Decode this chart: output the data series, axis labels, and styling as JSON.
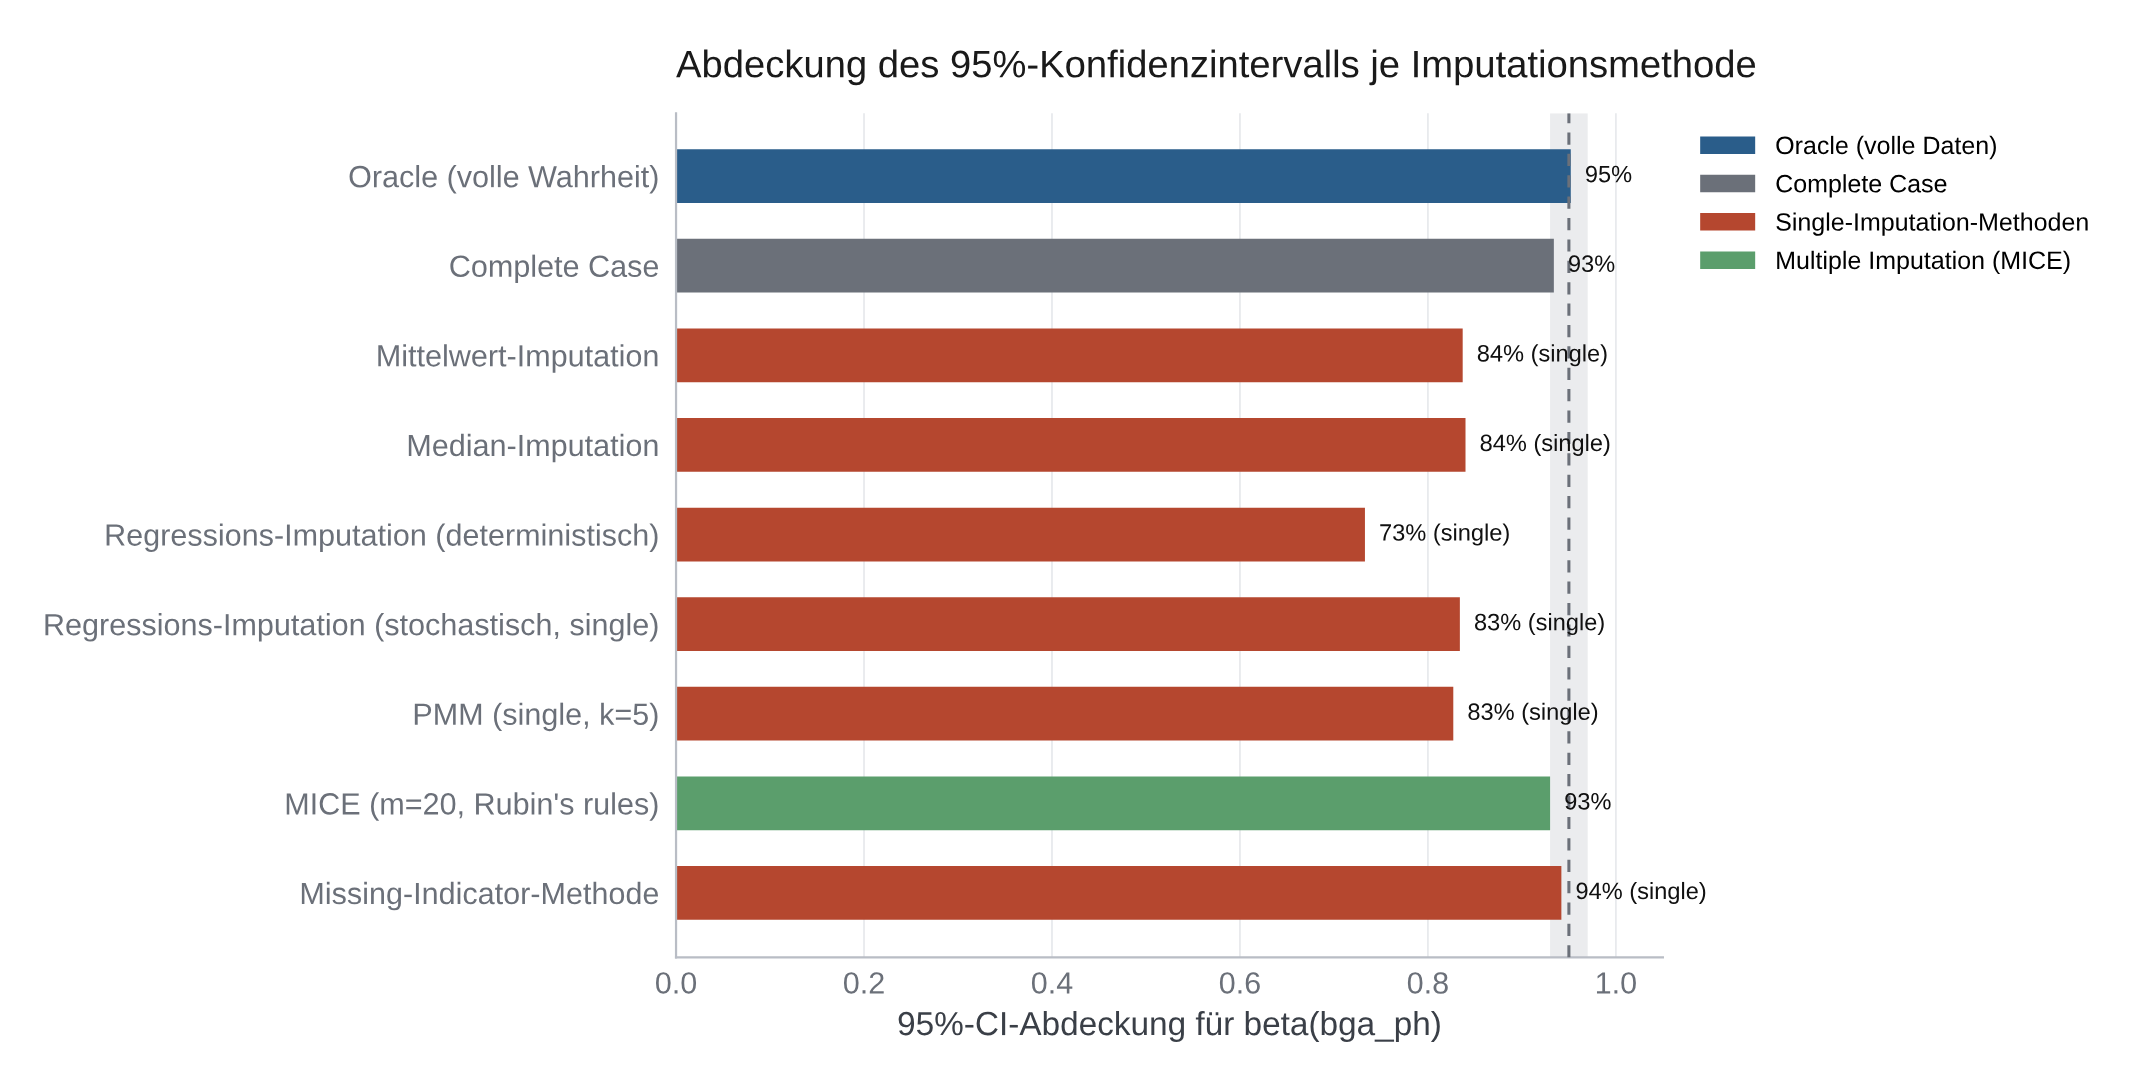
{
  "chart_data": {
    "type": "bar",
    "orientation": "horizontal",
    "title": "Abdeckung des 95%-Konfidenzintervalls je Imputationsmethode",
    "xlabel": "95%-CI-Abdeckung für beta(bga_ph)",
    "categories": [
      "Oracle (volle Wahrheit)",
      "Complete Case",
      "Mittelwert-Imputation",
      "Median-Imputation",
      "Regressions-Imputation (deterministisch)",
      "Regressions-Imputation (stochastisch, single)",
      "PMM (single, k=5)",
      "MICE (m=20, Rubin's rules)",
      "Missing-Indicator-Methode"
    ],
    "series": [
      {
        "name": "Oracle (volle Daten)",
        "color": "#2a5d8a",
        "values": [
          0.952,
          null,
          null,
          null,
          null,
          null,
          null,
          null,
          null
        ],
        "value_labels": [
          "95%",
          null,
          null,
          null,
          null,
          null,
          null,
          null,
          null
        ]
      },
      {
        "name": "Complete Case",
        "color": "#6b7079",
        "values": [
          null,
          0.934,
          null,
          null,
          null,
          null,
          null,
          null,
          null
        ],
        "value_labels": [
          null,
          "93%",
          null,
          null,
          null,
          null,
          null,
          null,
          null
        ]
      },
      {
        "name": "Single-Imputation-Methoden",
        "color": "#b5472f",
        "values": [
          null,
          null,
          0.837,
          0.84,
          0.733,
          0.834,
          0.827,
          null,
          0.942
        ],
        "value_labels": [
          null,
          null,
          "84% (single)",
          "84% (single)",
          "73% (single)",
          "83% (single)",
          "83% (single)",
          null,
          "94% (single)"
        ]
      },
      {
        "name": "Multiple Imputation (MICE)",
        "color": "#5b9e6c",
        "values": [
          null,
          null,
          null,
          null,
          null,
          null,
          null,
          0.93,
          null
        ],
        "value_labels": [
          null,
          null,
          null,
          null,
          null,
          null,
          null,
          "93%",
          null
        ]
      }
    ],
    "xlim": [
      0,
      1.05
    ],
    "xticks": [
      {
        "value": 0,
        "label": "0.0"
      },
      0.2,
      0.4,
      0.6,
      0.8,
      {
        "value": 1,
        "label": "1.0"
      }
    ],
    "grid": "x",
    "legend": "top right",
    "bands": [
      {
        "axis": "x",
        "from": 0.93,
        "to": 0.97,
        "color": "#ebecee"
      }
    ],
    "ref_lines": [
      {
        "axis": "x",
        "value": 0.95,
        "color": "#6b7079",
        "line_style": "dashed"
      }
    ]
  }
}
